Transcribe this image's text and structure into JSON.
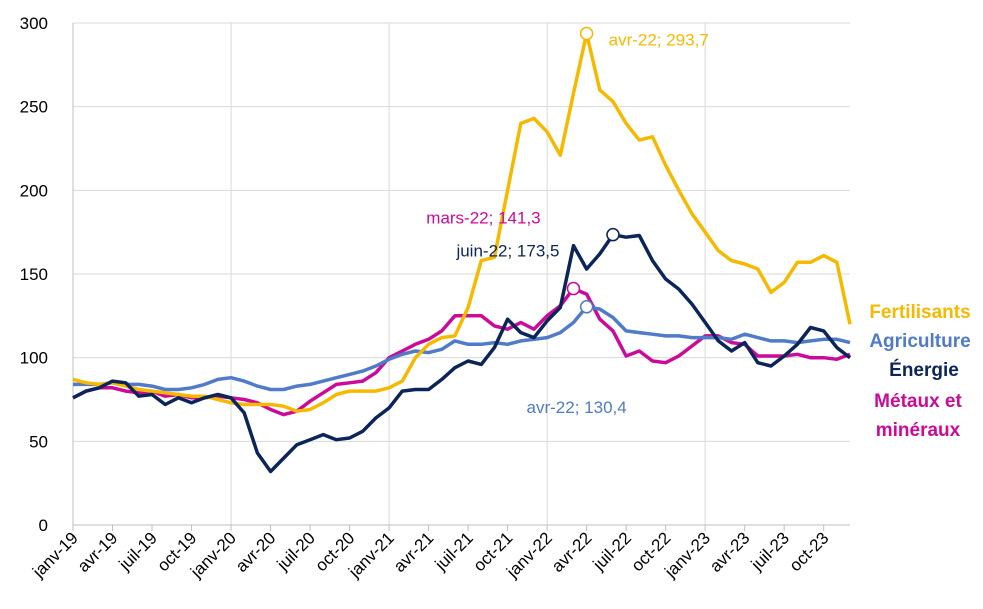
{
  "chart_data": {
    "type": "line",
    "categories": [
      "janv-19",
      null,
      null,
      "avr-19",
      null,
      null,
      "juil-19",
      null,
      null,
      "oct-19",
      null,
      null,
      "janv-20",
      null,
      null,
      "avr-20",
      null,
      null,
      "juil-20",
      null,
      null,
      "oct-20",
      null,
      null,
      "janv-21",
      null,
      null,
      "avr-21",
      null,
      null,
      "juil-21",
      null,
      null,
      "oct-21",
      null,
      null,
      "janv-22",
      null,
      null,
      "avr-22",
      null,
      null,
      "juil-22",
      null,
      null,
      "oct-22",
      null,
      null,
      "janv-23",
      null,
      null,
      "avr-23",
      null,
      null,
      "juil-23",
      null,
      null,
      "oct-23",
      null,
      null
    ],
    "ylim": [
      0,
      300
    ],
    "yticks": [
      0,
      50,
      100,
      150,
      200,
      250,
      300
    ],
    "grid": true,
    "series": [
      {
        "name": "Fertilisants",
        "color": "#f7b900",
        "annotation": "avr-22; 293,7",
        "values": [
          87,
          85,
          84,
          85,
          83,
          81,
          80,
          79,
          78,
          77,
          77,
          75,
          73,
          72,
          72,
          72,
          71,
          68,
          69,
          73,
          78,
          80,
          80,
          80,
          82,
          86,
          100,
          108,
          112,
          113,
          130,
          158,
          160,
          200,
          240,
          243,
          235,
          221,
          258,
          293.7,
          260,
          253,
          240,
          230,
          232,
          215,
          200,
          186,
          175,
          164,
          158,
          156,
          153,
          139,
          145,
          157,
          157,
          161,
          157,
          120
        ]
      },
      {
        "name": "Agriculture",
        "color": "#4f7bc8",
        "annotation": "avr-22; 130,4",
        "values": [
          84,
          84,
          84,
          85,
          84,
          84,
          83,
          81,
          81,
          82,
          84,
          87,
          88,
          86,
          83,
          81,
          81,
          83,
          84,
          86,
          88,
          90,
          92,
          95,
          99,
          102,
          104,
          103,
          105,
          110,
          108,
          108,
          109,
          108,
          110,
          111,
          112,
          115,
          121,
          130.4,
          129,
          124,
          116,
          115,
          114,
          113,
          113,
          112,
          112,
          112,
          111,
          114,
          112,
          110,
          110,
          109,
          110,
          111,
          111,
          109
        ]
      },
      {
        "name": "Énergie",
        "color": "#0b2459",
        "annotation": "juin-22; 173,5",
        "values": [
          76,
          80,
          82,
          86,
          85,
          77,
          78,
          72,
          76,
          73,
          76,
          78,
          76,
          67,
          43,
          32,
          40,
          48,
          51,
          54,
          51,
          52,
          56,
          64,
          70,
          80,
          81,
          81,
          87,
          94,
          98,
          96,
          106,
          123,
          115,
          112,
          122,
          130,
          167,
          153,
          162,
          173.5,
          172,
          173,
          158,
          147,
          141,
          132,
          121,
          110,
          104,
          109,
          97,
          95,
          101,
          108,
          118,
          116,
          106,
          100
        ]
      },
      {
        "name": "Métaux et minéraux",
        "color": "#cc0a99",
        "annotation": "mars-22; 141,3",
        "values": [
          76,
          80,
          82,
          82,
          80,
          79,
          80,
          77,
          78,
          76,
          76,
          77,
          76,
          75,
          73,
          69,
          66,
          68,
          74,
          79,
          84,
          85,
          86,
          91,
          100,
          104,
          108,
          111,
          116,
          125,
          125,
          125,
          119,
          117,
          121,
          117,
          125,
          131,
          141.3,
          138,
          123,
          116,
          101,
          104,
          98,
          97,
          101,
          107,
          113,
          113,
          109,
          108,
          101,
          101,
          101,
          102,
          100,
          100,
          99,
          102
        ]
      }
    ]
  }
}
